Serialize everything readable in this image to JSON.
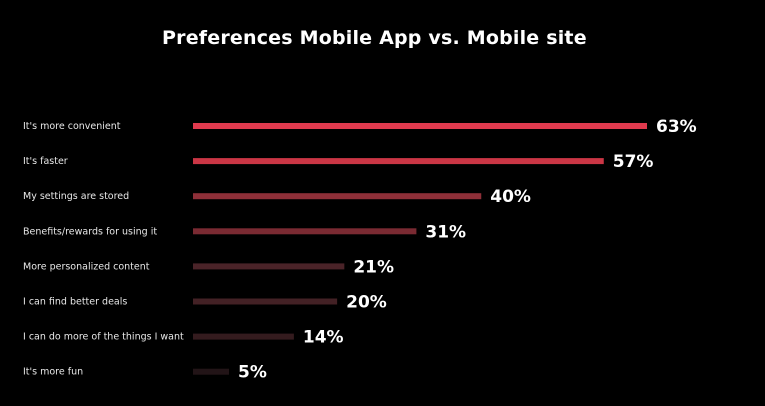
{
  "chart_data": {
    "type": "bar",
    "orientation": "horizontal",
    "title": "Preferences Mobile App vs. Mobile site",
    "xlabel": "",
    "ylabel": "",
    "xlim": [
      0,
      63
    ],
    "grid": false,
    "legend": "none",
    "value_suffix": "%",
    "categories": [
      "It's more convenient",
      "It's faster",
      "My settings are stored",
      "Benefits/rewards for using it",
      "More personalized content",
      "I can find better deals",
      "I can do more of the things I want",
      "It's more fun"
    ],
    "values": [
      63,
      57,
      40,
      31,
      21,
      20,
      14,
      5
    ],
    "data_labels": [
      "63%",
      "57%",
      "40%",
      "31%",
      "21%",
      "20%",
      "14%",
      "5%"
    ],
    "bar_colors": [
      "#e03a4e",
      "#cb3645",
      "#8e2f38",
      "#7a2a32",
      "#4a2328",
      "#432125",
      "#341b1e",
      "#221417"
    ]
  }
}
